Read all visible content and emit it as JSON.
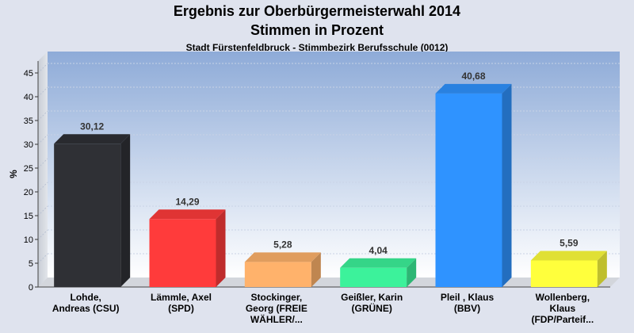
{
  "chart_data": {
    "type": "bar",
    "title": "Ergebnis zur Oberbürgermeisterwahl 2014",
    "subtitle": "Stimmen in Prozent",
    "caption": "Stadt Fürstenfeldbruck - Stimmbezirk Berufsschule (0012)",
    "ylabel": "%",
    "xlabel": "",
    "ylim": [
      0,
      47.5
    ],
    "yticks": [
      "0",
      "5",
      "10",
      "15",
      "20",
      "25",
      "30",
      "35",
      "40",
      "45"
    ],
    "grid": true,
    "legend": "none",
    "categories": [
      [
        "Lohde,",
        "Andreas (CSU)"
      ],
      [
        "Lämmle, Axel",
        "(SPD)"
      ],
      [
        "Stockinger,",
        "Georg (FREIE",
        "WÄHLER/..."
      ],
      [
        "Geißler, Karin",
        "(GRÜNE)"
      ],
      [
        "Pleil , Klaus",
        "(BBV)"
      ],
      [
        "Wollenberg,",
        "Klaus",
        "(FDP/Parteif..."
      ]
    ],
    "values": [
      30.12,
      14.29,
      5.28,
      4.04,
      40.68,
      5.59
    ],
    "value_labels": [
      "30,12",
      "14,29",
      "5,28",
      "4,04",
      "40,68",
      "5,59"
    ],
    "colors": [
      "#2f3035",
      "#ff3b3b",
      "#ffb26b",
      "#3cf29b",
      "#2f93ff",
      "#ffff3c"
    ]
  }
}
